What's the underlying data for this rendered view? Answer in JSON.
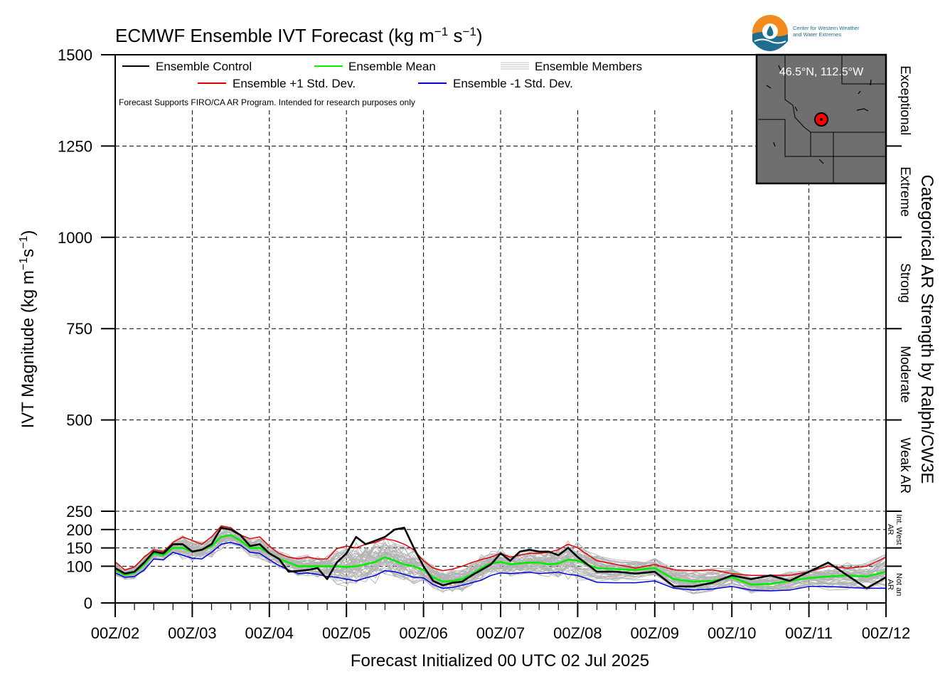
{
  "chart_data": {
    "type": "line",
    "title": "ECMWF Ensemble IVT Forecast (kg m",
    "title_units_tail": [
      " s",
      ")"
    ],
    "title_exponents": [
      "−1",
      "−1"
    ],
    "ylabel": "IVT Magnitude (kg m",
    "ylabel_tail": [
      "s",
      ")"
    ],
    "ylabel_exponents": [
      "−1",
      "−1"
    ],
    "xlabel": "Forecast Initialized 00 UTC 02 Jul 2025",
    "right_label": "Categorical AR Strength by Ralph/CW3E",
    "ylim": [
      0,
      1500
    ],
    "xlim": [
      0,
      240
    ],
    "y_ticks": [
      0,
      100,
      150,
      200,
      250,
      500,
      750,
      1000,
      1250,
      1500
    ],
    "y_tick_labels": [
      "0",
      "100",
      "150",
      "200",
      "250",
      "500",
      "750",
      "1000",
      "1250",
      "1500"
    ],
    "x_ticks": [
      0,
      24,
      48,
      72,
      96,
      120,
      144,
      168,
      192,
      216,
      240
    ],
    "x_tick_labels": [
      "00Z/02",
      "00Z/03",
      "00Z/04",
      "00Z/05",
      "00Z/06",
      "00Z/07",
      "00Z/08",
      "00Z/09",
      "00Z/10",
      "00Z/11",
      "00Z/12"
    ],
    "categories": [
      {
        "label": "Not an AR",
        "lines": [
          "Not an",
          "AR"
        ],
        "from": 0,
        "to": 100,
        "size": "small"
      },
      {
        "label": "Int. West AR",
        "lines": [
          "Int. West",
          "AR"
        ],
        "from": 150,
        "to": 250,
        "size": "small"
      },
      {
        "label": "Weak AR",
        "lines": [
          "Weak AR"
        ],
        "from": 250,
        "to": 500,
        "size": "large"
      },
      {
        "label": "Moderate",
        "lines": [
          "Moderate"
        ],
        "from": 500,
        "to": 750,
        "size": "large"
      },
      {
        "label": "Strong",
        "lines": [
          "Strong"
        ],
        "from": 750,
        "to": 1000,
        "size": "large"
      },
      {
        "label": "Extreme",
        "lines": [
          "Extreme"
        ],
        "from": 1000,
        "to": 1250,
        "size": "large"
      },
      {
        "label": "Exceptional",
        "lines": [
          "Exceptional"
        ],
        "from": 1250,
        "to": 1500,
        "size": "large"
      }
    ],
    "legend": {
      "entries": [
        {
          "name": "Ensemble Control",
          "color": "#000000"
        },
        {
          "name": "Ensemble Mean",
          "color": "#00ee00"
        },
        {
          "name": "Ensemble Members",
          "color": "#aaaaaa"
        },
        {
          "name": "Ensemble +1 Std. Dev.",
          "color": "#e00000"
        },
        {
          "name": "Ensemble -1 Std. Dev.",
          "color": "#0000e0"
        }
      ],
      "note": "Forecast Supports FIRO/CA AR Program. Intended for research purposes only",
      "placement": "top-left"
    },
    "x": [
      0,
      3,
      6,
      9,
      12,
      15,
      18,
      21,
      24,
      27,
      30,
      33,
      36,
      39,
      42,
      45,
      48,
      51,
      54,
      57,
      60,
      63,
      66,
      69,
      72,
      75,
      78,
      81,
      84,
      87,
      90,
      93,
      96,
      99,
      102,
      105,
      108,
      111,
      114,
      117,
      120,
      123,
      126,
      129,
      132,
      135,
      138,
      141,
      144,
      150,
      156,
      162,
      168,
      174,
      180,
      186,
      192,
      198,
      204,
      210,
      216,
      222,
      228,
      234,
      240
    ],
    "series": [
      {
        "name": "Ensemble Control",
        "color": "#000000",
        "values": [
          95,
          80,
          85,
          110,
          140,
          135,
          160,
          160,
          140,
          145,
          160,
          205,
          200,
          185,
          155,
          160,
          135,
          120,
          85,
          87,
          90,
          95,
          65,
          110,
          135,
          180,
          160,
          170,
          180,
          200,
          205,
          150,
          100,
          60,
          48,
          55,
          58,
          75,
          90,
          105,
          135,
          115,
          140,
          145,
          140,
          140,
          130,
          150,
          125,
          85,
          85,
          80,
          85,
          45,
          45,
          55,
          75,
          65,
          75,
          60,
          85,
          110,
          75,
          40,
          70
        ]
      },
      {
        "name": "Ensemble Mean",
        "color": "#00ee00",
        "values": [
          90,
          76,
          82,
          105,
          135,
          130,
          150,
          150,
          140,
          145,
          155,
          180,
          185,
          170,
          150,
          150,
          135,
          120,
          110,
          100,
          100,
          100,
          100,
          100,
          98,
          100,
          105,
          112,
          125,
          115,
          105,
          100,
          90,
          70,
          58,
          60,
          65,
          78,
          95,
          108,
          112,
          105,
          108,
          110,
          110,
          105,
          108,
          118,
          115,
          95,
          92,
          90,
          95,
          65,
          58,
          60,
          70,
          50,
          52,
          60,
          68,
          72,
          75,
          72,
          85
        ]
      },
      {
        "name": "Ensemble +1 Std. Dev.",
        "color": "#e00000",
        "values": [
          112,
          90,
          98,
          125,
          145,
          140,
          165,
          180,
          170,
          160,
          180,
          210,
          205,
          185,
          175,
          180,
          155,
          135,
          125,
          120,
          125,
          120,
          120,
          148,
          155,
          150,
          160,
          165,
          175,
          170,
          160,
          145,
          115,
          95,
          88,
          92,
          100,
          110,
          118,
          125,
          135,
          125,
          130,
          135,
          135,
          138,
          145,
          160,
          150,
          115,
          105,
          95,
          105,
          90,
          88,
          90,
          80,
          75,
          75,
          75,
          85,
          100,
          95,
          100,
          125
        ]
      },
      {
        "name": "Ensemble -1 Std. Dev.",
        "color": "#0000e0",
        "values": [
          82,
          70,
          72,
          90,
          120,
          118,
          138,
          130,
          122,
          120,
          138,
          160,
          165,
          158,
          138,
          135,
          118,
          102,
          90,
          80,
          82,
          78,
          72,
          70,
          65,
          60,
          68,
          75,
          88,
          85,
          78,
          70,
          68,
          50,
          40,
          42,
          48,
          55,
          62,
          75,
          82,
          80,
          82,
          84,
          80,
          82,
          84,
          78,
          75,
          56,
          55,
          55,
          60,
          40,
          35,
          38,
          45,
          35,
          33,
          35,
          45,
          45,
          42,
          40,
          40
        ]
      }
    ]
  }
}
